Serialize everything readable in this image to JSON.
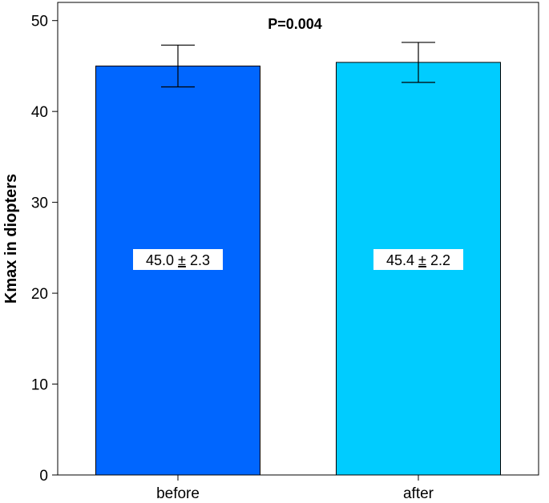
{
  "chart_data": {
    "type": "bar",
    "categories": [
      "before",
      "after"
    ],
    "values": [
      45.0,
      45.4
    ],
    "error": [
      2.3,
      2.2
    ],
    "bar_labels": [
      {
        "mean": "45.0",
        "pm": "±",
        "sd": "2.3"
      },
      {
        "mean": "45.4",
        "pm": "±",
        "sd": "2.2"
      }
    ],
    "colors": [
      "#0066ff",
      "#00ccff"
    ],
    "title": "",
    "annotation": "P=0.004",
    "xlabel": "",
    "ylabel": "Kmax in diopters",
    "ylim": [
      0,
      52
    ],
    "yticks": [
      "0",
      "10",
      "20",
      "30",
      "40",
      "50"
    ],
    "grid": false,
    "legend": "none"
  }
}
